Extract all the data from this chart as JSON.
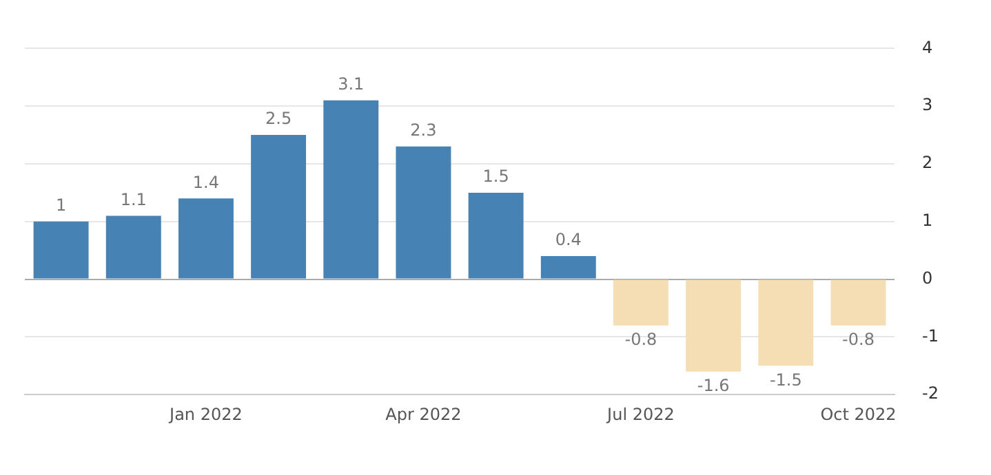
{
  "chart_data": {
    "type": "bar",
    "categories": [
      null,
      null,
      "Jan 2022",
      null,
      null,
      "Apr 2022",
      null,
      null,
      "Jul 2022",
      null,
      null,
      "Oct 2022"
    ],
    "values": [
      1,
      1.1,
      1.4,
      2.5,
      3.1,
      2.3,
      1.5,
      0.4,
      -0.8,
      -1.6,
      -1.5,
      -0.8
    ],
    "colors": [
      "#4682b4",
      "#4682b4",
      "#4682b4",
      "#4682b4",
      "#4682b4",
      "#4682b4",
      "#4682b4",
      "#4682b4",
      "#f5deb3",
      "#f5deb3",
      "#f5deb3",
      "#f5deb3"
    ],
    "ylim": [
      -2,
      4
    ],
    "yticks": [
      -2,
      -1,
      0,
      1,
      2,
      3,
      4
    ],
    "grid": "y",
    "data_labels": true,
    "legend": false
  }
}
